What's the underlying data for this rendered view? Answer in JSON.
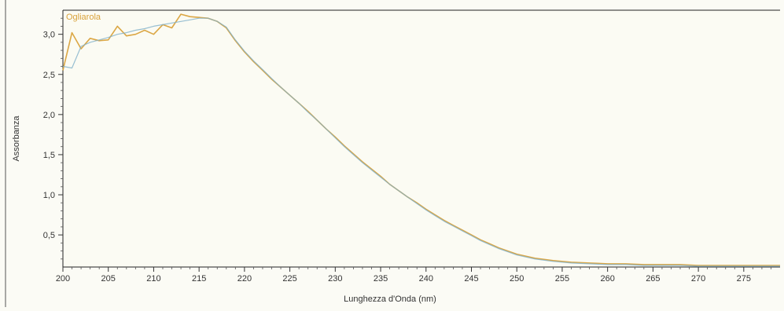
{
  "chart_data": {
    "type": "line",
    "title": "",
    "xlabel": "Lunghezza d'Onda (nm)",
    "ylabel": "Assorbanza",
    "xlim": [
      200,
      279
    ],
    "ylim": [
      0.1,
      3.3
    ],
    "grid": false,
    "legend": "top-left",
    "x_ticks": [
      200,
      205,
      210,
      215,
      220,
      225,
      230,
      235,
      240,
      245,
      250,
      255,
      260,
      265,
      270,
      275
    ],
    "x_tick_labels": [
      "200",
      "205",
      "210",
      "215",
      "220",
      "225",
      "230",
      "235",
      "240",
      "245",
      "250",
      "255",
      "260",
      "265",
      "270",
      "275"
    ],
    "y_ticks": [
      0.5,
      1.0,
      1.5,
      2.0,
      2.5,
      3.0
    ],
    "y_tick_labels": [
      "0,5",
      "1,0",
      "1,5",
      "2,0",
      "2,5",
      "3,0"
    ],
    "series": [
      {
        "name": "Ogliarola",
        "color": "#d9a23b",
        "x": [
          200,
          201,
          202,
          203,
          204,
          205,
          206,
          207,
          208,
          209,
          210,
          211,
          212,
          213,
          214,
          215,
          216,
          217,
          218,
          219,
          220,
          221,
          222,
          223,
          224,
          225,
          226,
          227,
          228,
          229,
          230,
          231,
          232,
          233,
          234,
          235,
          236,
          237,
          238,
          239,
          240,
          241,
          242,
          243,
          244,
          245,
          246,
          247,
          248,
          249,
          250,
          252,
          254,
          256,
          258,
          260,
          262,
          264,
          266,
          268,
          270,
          272,
          274,
          276,
          278,
          279
        ],
        "y": [
          2.55,
          3.02,
          2.82,
          2.95,
          2.92,
          2.93,
          3.1,
          2.98,
          3.0,
          3.05,
          3.0,
          3.12,
          3.08,
          3.25,
          3.22,
          3.21,
          3.2,
          3.16,
          3.08,
          2.92,
          2.78,
          2.66,
          2.55,
          2.44,
          2.34,
          2.24,
          2.14,
          2.04,
          1.93,
          1.82,
          1.72,
          1.61,
          1.51,
          1.41,
          1.32,
          1.23,
          1.13,
          1.05,
          0.97,
          0.9,
          0.82,
          0.75,
          0.68,
          0.62,
          0.56,
          0.5,
          0.44,
          0.39,
          0.34,
          0.3,
          0.26,
          0.21,
          0.18,
          0.16,
          0.15,
          0.14,
          0.14,
          0.13,
          0.13,
          0.13,
          0.12,
          0.12,
          0.12,
          0.12,
          0.12,
          0.12
        ]
      },
      {
        "color": "#7fb0c9",
        "x": [
          200,
          201,
          202,
          203,
          204,
          205,
          206,
          207,
          208,
          209,
          210,
          211,
          212,
          213,
          214,
          215,
          216,
          217,
          218,
          219,
          220,
          221,
          222,
          223,
          224,
          225,
          226,
          227,
          228,
          229,
          230,
          231,
          232,
          233,
          234,
          235,
          236,
          237,
          238,
          239,
          240,
          241,
          242,
          243,
          244,
          245,
          246,
          247,
          248,
          249,
          250,
          252,
          254,
          256,
          258,
          260,
          262,
          264,
          266,
          268,
          270,
          272,
          274,
          276,
          278,
          279
        ],
        "y": [
          2.6,
          2.58,
          2.85,
          2.9,
          2.93,
          2.96,
          3.0,
          3.02,
          3.05,
          3.07,
          3.1,
          3.12,
          3.14,
          3.16,
          3.18,
          3.2,
          3.2,
          3.16,
          3.09,
          2.93,
          2.79,
          2.67,
          2.56,
          2.45,
          2.34,
          2.24,
          2.14,
          2.03,
          1.93,
          1.82,
          1.71,
          1.6,
          1.5,
          1.4,
          1.31,
          1.22,
          1.13,
          1.05,
          0.97,
          0.89,
          0.81,
          0.74,
          0.67,
          0.61,
          0.55,
          0.49,
          0.43,
          0.38,
          0.33,
          0.29,
          0.25,
          0.2,
          0.17,
          0.15,
          0.14,
          0.13,
          0.13,
          0.12,
          0.12,
          0.12,
          0.11,
          0.11,
          0.11,
          0.11,
          0.11,
          0.11
        ]
      }
    ]
  }
}
